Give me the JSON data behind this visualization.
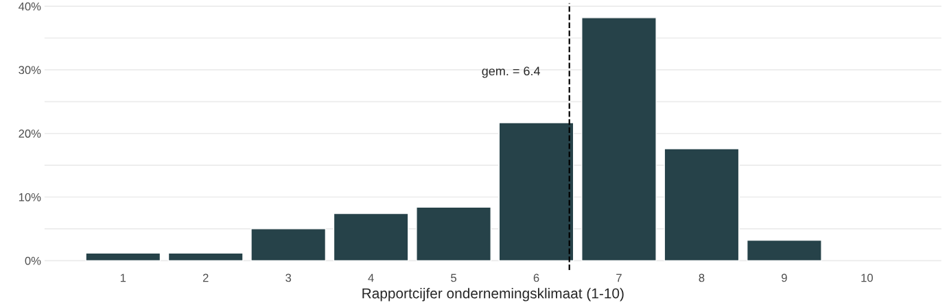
{
  "chart_data": {
    "type": "bar",
    "xlabel": "Rapportcijfer ondernemingsklimaat (1-10)",
    "x": [
      1,
      2,
      3,
      4,
      5,
      6,
      7,
      8,
      9
    ],
    "values": [
      1.2,
      1.2,
      5.0,
      7.4,
      8.4,
      21.7,
      38.2,
      17.6,
      3.2
    ],
    "color": "#264249",
    "xlim": [
      0.05,
      10.9
    ],
    "xticks": [
      1,
      2,
      3,
      4,
      5,
      6,
      7,
      8,
      9,
      10
    ],
    "ylim": [
      -1.5,
      40.5
    ],
    "yticks": [
      {
        "value": 0,
        "label": "0%"
      },
      {
        "value": 5,
        "label": null
      },
      {
        "value": 10,
        "label": "10%"
      },
      {
        "value": 15,
        "label": null
      },
      {
        "value": 20,
        "label": "20%"
      },
      {
        "value": 25,
        "label": null
      },
      {
        "value": 30,
        "label": "30%"
      },
      {
        "value": 35,
        "label": null
      },
      {
        "value": 40,
        "label": "40%"
      }
    ],
    "ref_lines": [
      {
        "axis": "x",
        "value": 6.4,
        "label": "gem. = 6.4",
        "color": "#000000",
        "line_style": "dashed"
      }
    ],
    "grid": "y"
  }
}
